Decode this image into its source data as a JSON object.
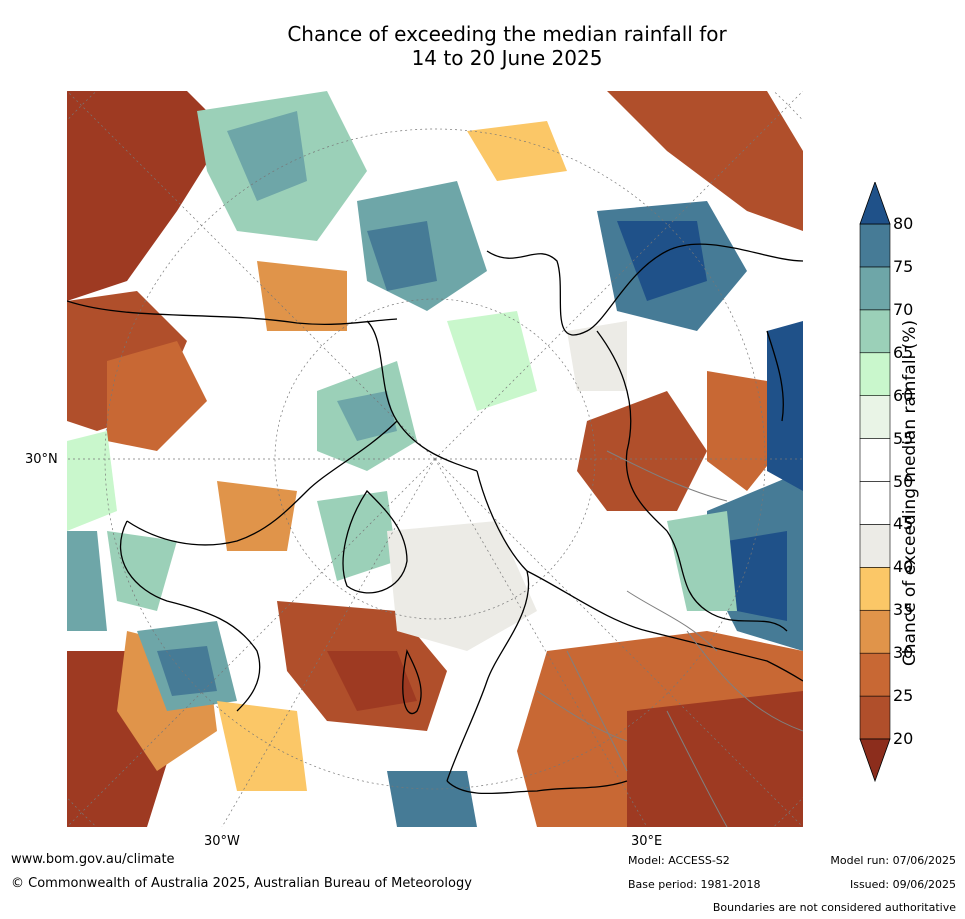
{
  "title": {
    "line1": "Chance of exceeding the median rainfall for",
    "line2": "14 to 20 June 2025"
  },
  "axes": {
    "left_label": "30°N",
    "bottom_left_label": "30°W",
    "bottom_right_label": "30°E"
  },
  "colorbar": {
    "title": "Chance of exceeding median rainfall (%)",
    "ticks": [
      "20",
      "25",
      "30",
      "35",
      "40",
      "45",
      "50",
      "55",
      "60",
      "65",
      "70",
      "75",
      "80"
    ],
    "colors": [
      "#9e3a22",
      "#b04f2b",
      "#c86834",
      "#e0944a",
      "#fbc767",
      "#ecebe6",
      "#ffffff",
      "#ffffff",
      "#e9f4e6",
      "#c9f7cc",
      "#9bd0b8",
      "#6ea6a8",
      "#467b96"
    ],
    "under_color": "#8c2d1c",
    "over_color": "#1f5189"
  },
  "footer": {
    "url": "www.bom.gov.au/climate",
    "copyright": "© Commonwealth of Australia 2025, Australian Bureau of Meteorology",
    "model": "Model: ACCESS-S2",
    "base_period": "Base period: 1981-2018",
    "model_run": "Model run: 07/06/2025",
    "issued": "Issued: 09/06/2025",
    "disclaimer": "Boundaries are not considered authoritative"
  }
}
